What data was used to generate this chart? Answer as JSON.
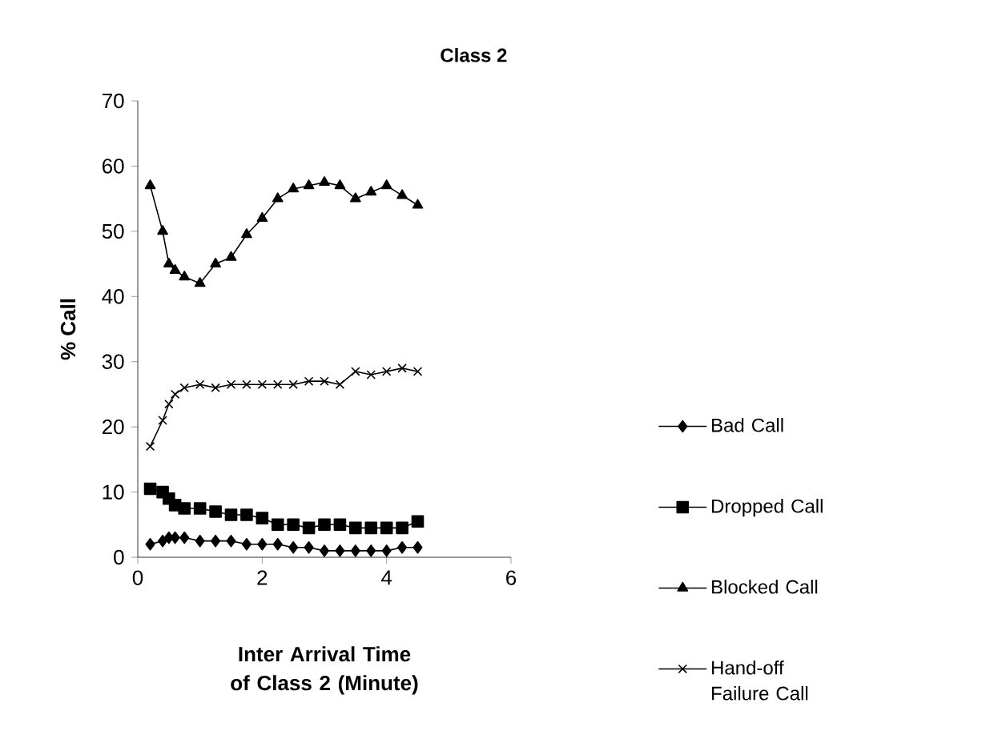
{
  "chart_data": {
    "type": "line",
    "title": "Class 2",
    "xlabel": "Inter Arrival Time of Class 2 (Minute)",
    "ylabel": "% Call",
    "x": [
      0.2,
      0.4,
      0.5,
      0.6,
      0.75,
      1.0,
      1.25,
      1.5,
      1.75,
      2.0,
      2.25,
      2.5,
      2.75,
      3.0,
      3.25,
      3.5,
      3.75,
      4.0,
      4.25,
      4.5
    ],
    "series": [
      {
        "name": "Bad Call",
        "color": "#000000",
        "marker": "diamond",
        "values": [
          2,
          2.5,
          3,
          3,
          3,
          2.5,
          2.5,
          2.5,
          2,
          2,
          2,
          1.5,
          1.5,
          1,
          1,
          1,
          1,
          1,
          1.5,
          1.5
        ]
      },
      {
        "name": "Dropped Call",
        "color": "#000000",
        "marker": "square",
        "values": [
          10.5,
          10,
          9,
          8,
          7.5,
          7.5,
          7,
          6.5,
          6.5,
          6,
          5,
          5,
          4.5,
          5,
          5,
          4.5,
          4.5,
          4.5,
          4.5,
          5.5
        ]
      },
      {
        "name": "Blocked Call",
        "color": "#000000",
        "marker": "triangle",
        "values": [
          57,
          50,
          45,
          44,
          43,
          42,
          45,
          46,
          49.5,
          52,
          55,
          56.5,
          57,
          57.5,
          57,
          55,
          56,
          57,
          55.5,
          54
        ]
      },
      {
        "name": "Hand-off Failure Call",
        "color": "#000000",
        "marker": "cross",
        "values": [
          17,
          21,
          23.5,
          25,
          26,
          26.5,
          26,
          26.5,
          26.5,
          26.5,
          26.5,
          26.5,
          27,
          27,
          26.5,
          28.5,
          28,
          28.5,
          29,
          28.5
        ]
      }
    ],
    "xlim": [
      0,
      6
    ],
    "xticks": [
      0,
      2,
      4,
      6
    ],
    "ylim": [
      0,
      70
    ],
    "yticks": [
      0,
      10,
      20,
      30,
      40,
      50,
      60,
      70
    ],
    "grid": false,
    "legend": "right",
    "line_style": "solid"
  }
}
